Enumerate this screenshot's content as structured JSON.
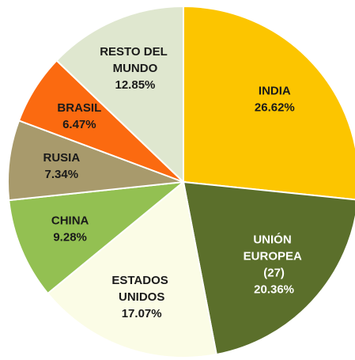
{
  "chart_data": {
    "type": "pie",
    "categories": [
      "INDIA",
      "UNIÓN EUROPEA (27)",
      "ESTADOS UNIDOS",
      "CHINA",
      "RUSIA",
      "BRASIL",
      "RESTO DEL MUNDO"
    ],
    "values": [
      26.62,
      20.36,
      17.07,
      9.28,
      7.34,
      6.47,
      12.85
    ],
    "value_labels": [
      "26.62%",
      "20.36%",
      "17.07%",
      "9.28%",
      "7.34%",
      "6.47%",
      "12.85%"
    ],
    "colors": [
      "#fcc500",
      "#5b6f2b",
      "#fbfce6",
      "#93c052",
      "#a89a6c",
      "#fb6a10",
      "#dfe7cf"
    ]
  }
}
